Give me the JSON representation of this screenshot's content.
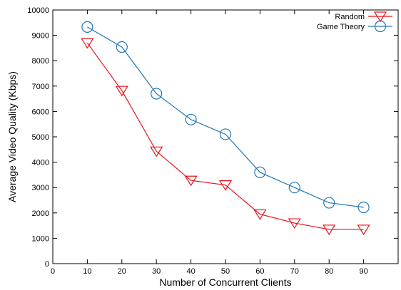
{
  "chart_data": {
    "type": "line",
    "title": "",
    "xlabel": "Number of Concurrent Clients",
    "ylabel": "Average Video Quality (Kbps)",
    "xlim": [
      0,
      100
    ],
    "ylim": [
      0,
      10000
    ],
    "xticks": [
      0,
      10,
      20,
      30,
      40,
      50,
      60,
      70,
      80,
      90
    ],
    "yticks": [
      0,
      1000,
      2000,
      3000,
      4000,
      5000,
      6000,
      7000,
      8000,
      9000,
      10000
    ],
    "grid": false,
    "legend_position": "top-right",
    "x": [
      10,
      20,
      30,
      40,
      50,
      60,
      70,
      80,
      90
    ],
    "series": [
      {
        "name": "Random",
        "color": "#e8131a",
        "marker": "triangle-down",
        "values": [
          8700,
          6820,
          4430,
          3280,
          3100,
          1950,
          1600,
          1350,
          1350
        ]
      },
      {
        "name": "Game Theory",
        "color": "#2077b4",
        "marker": "circle",
        "values": [
          9330,
          8540,
          6700,
          5680,
          5100,
          3600,
          3000,
          2400,
          2220
        ]
      }
    ]
  }
}
